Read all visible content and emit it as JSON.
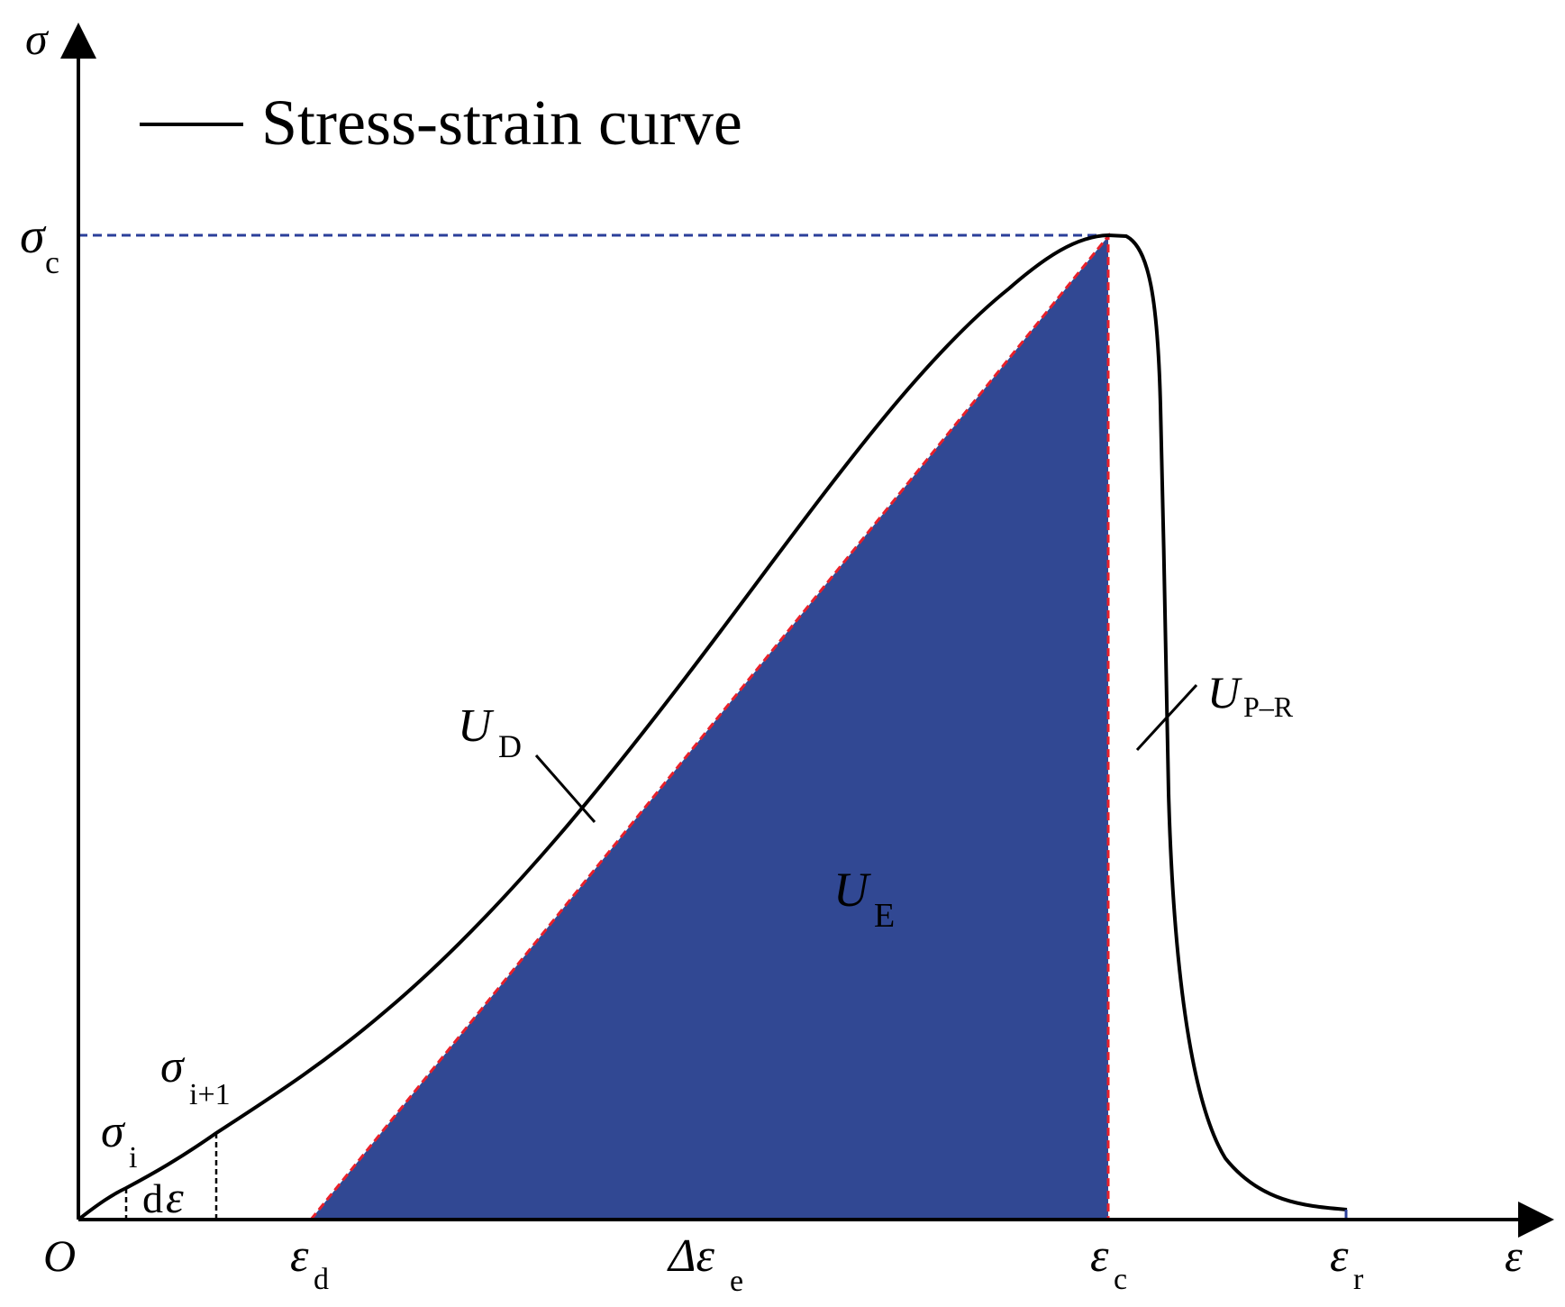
{
  "legend": {
    "label": "Stress-strain curve"
  },
  "axes": {
    "y_axis_symbol": "σ",
    "x_axis_symbol": "ε",
    "origin_label": "O"
  },
  "labels": {
    "sigma_c": {
      "main": "σ",
      "sub": "c"
    },
    "sigma_i": {
      "main": "σ",
      "sub": "i"
    },
    "sigma_i1": {
      "main": "σ",
      "sub": "i+1"
    },
    "d_epsilon": {
      "main": "d",
      "sym": "ε"
    },
    "eps_d": {
      "main": "ε",
      "sub": "d"
    },
    "delta_eps_e": {
      "main": "Δε",
      "sub": "e"
    },
    "eps_c": {
      "main": "ε",
      "sub": "c"
    },
    "eps_r": {
      "main": "ε",
      "sub": "r"
    },
    "U_D": {
      "main": "U",
      "sub": "D"
    },
    "U_E": {
      "main": "U",
      "sub": "E"
    },
    "U_PR": {
      "main": "U",
      "sub": "P–R"
    }
  },
  "colors": {
    "curve": "#000000",
    "fill": "#314893",
    "red_dash": "#e8202a",
    "blue_dash": "#2b3f9a"
  }
}
